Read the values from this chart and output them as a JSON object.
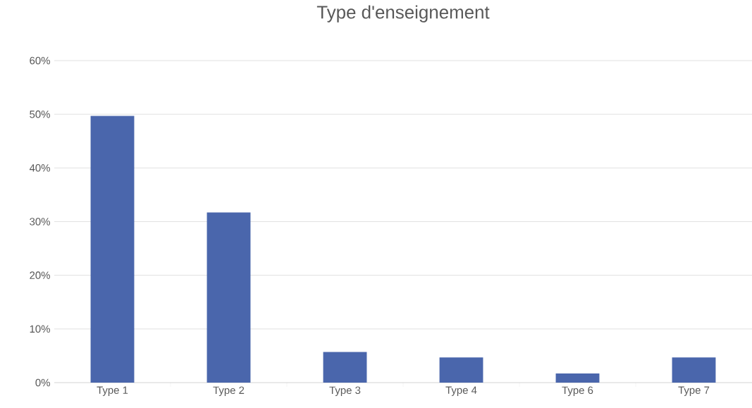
{
  "chart_data": {
    "type": "bar",
    "title": "Type d'enseignement",
    "categories": [
      "Type 1",
      "Type 2",
      "Type 3",
      "Type 4",
      "Type 6",
      "Type 7"
    ],
    "values": [
      49.7,
      31.7,
      5.7,
      4.7,
      1.7,
      4.7
    ],
    "color": "#4a66ac",
    "ylim": [
      0,
      60
    ],
    "yticks": [
      {
        "value": 0,
        "label": "0%"
      },
      {
        "value": 10,
        "label": "10%"
      },
      {
        "value": 20,
        "label": "20%"
      },
      {
        "value": 30,
        "label": "30%"
      },
      {
        "value": 40,
        "label": "40%"
      },
      {
        "value": 50,
        "label": "50%"
      },
      {
        "value": 60,
        "label": "60%"
      }
    ],
    "grid": "y"
  }
}
